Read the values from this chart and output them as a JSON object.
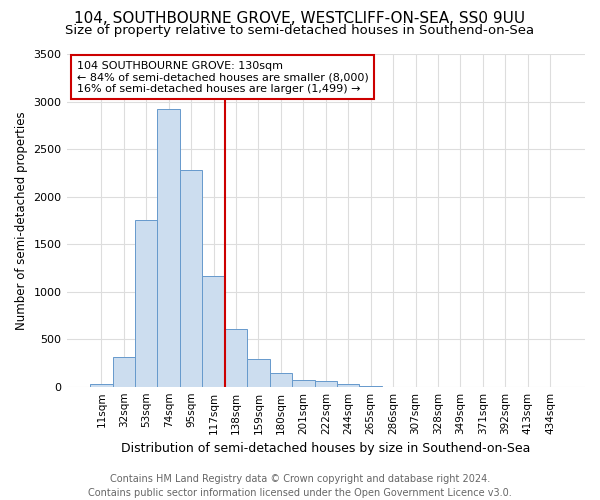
{
  "title": "104, SOUTHBOURNE GROVE, WESTCLIFF-ON-SEA, SS0 9UU",
  "subtitle": "Size of property relative to semi-detached houses in Southend-on-Sea",
  "xlabel": "Distribution of semi-detached houses by size in Southend-on-Sea",
  "ylabel": "Number of semi-detached properties",
  "footer1": "Contains HM Land Registry data © Crown copyright and database right 2024.",
  "footer2": "Contains public sector information licensed under the Open Government Licence v3.0.",
  "categories": [
    "11sqm",
    "32sqm",
    "53sqm",
    "74sqm",
    "95sqm",
    "117sqm",
    "138sqm",
    "159sqm",
    "180sqm",
    "201sqm",
    "222sqm",
    "244sqm",
    "265sqm",
    "286sqm",
    "307sqm",
    "328sqm",
    "349sqm",
    "371sqm",
    "392sqm",
    "413sqm",
    "434sqm"
  ],
  "values": [
    30,
    310,
    1750,
    2920,
    2280,
    1160,
    610,
    290,
    140,
    75,
    55,
    30,
    10,
    0,
    0,
    0,
    0,
    0,
    0,
    0,
    0
  ],
  "bar_color": "#ccddef",
  "bar_edge_color": "#6699cc",
  "highlight_bar_idx": 5,
  "highlight_color": "#cc0000",
  "annotation_title": "104 SOUTHBOURNE GROVE: 130sqm",
  "annotation_line1": "← 84% of semi-detached houses are smaller (8,000)",
  "annotation_line2": "16% of semi-detached houses are larger (1,499) →",
  "annotation_box_color": "#ffffff",
  "annotation_box_edge": "#cc0000",
  "ylim": [
    0,
    3500
  ],
  "yticks": [
    0,
    500,
    1000,
    1500,
    2000,
    2500,
    3000,
    3500
  ],
  "bg_color": "#ffffff",
  "plot_bg_color": "#ffffff",
  "title_fontsize": 11,
  "subtitle_fontsize": 9.5,
  "footer_fontsize": 7
}
